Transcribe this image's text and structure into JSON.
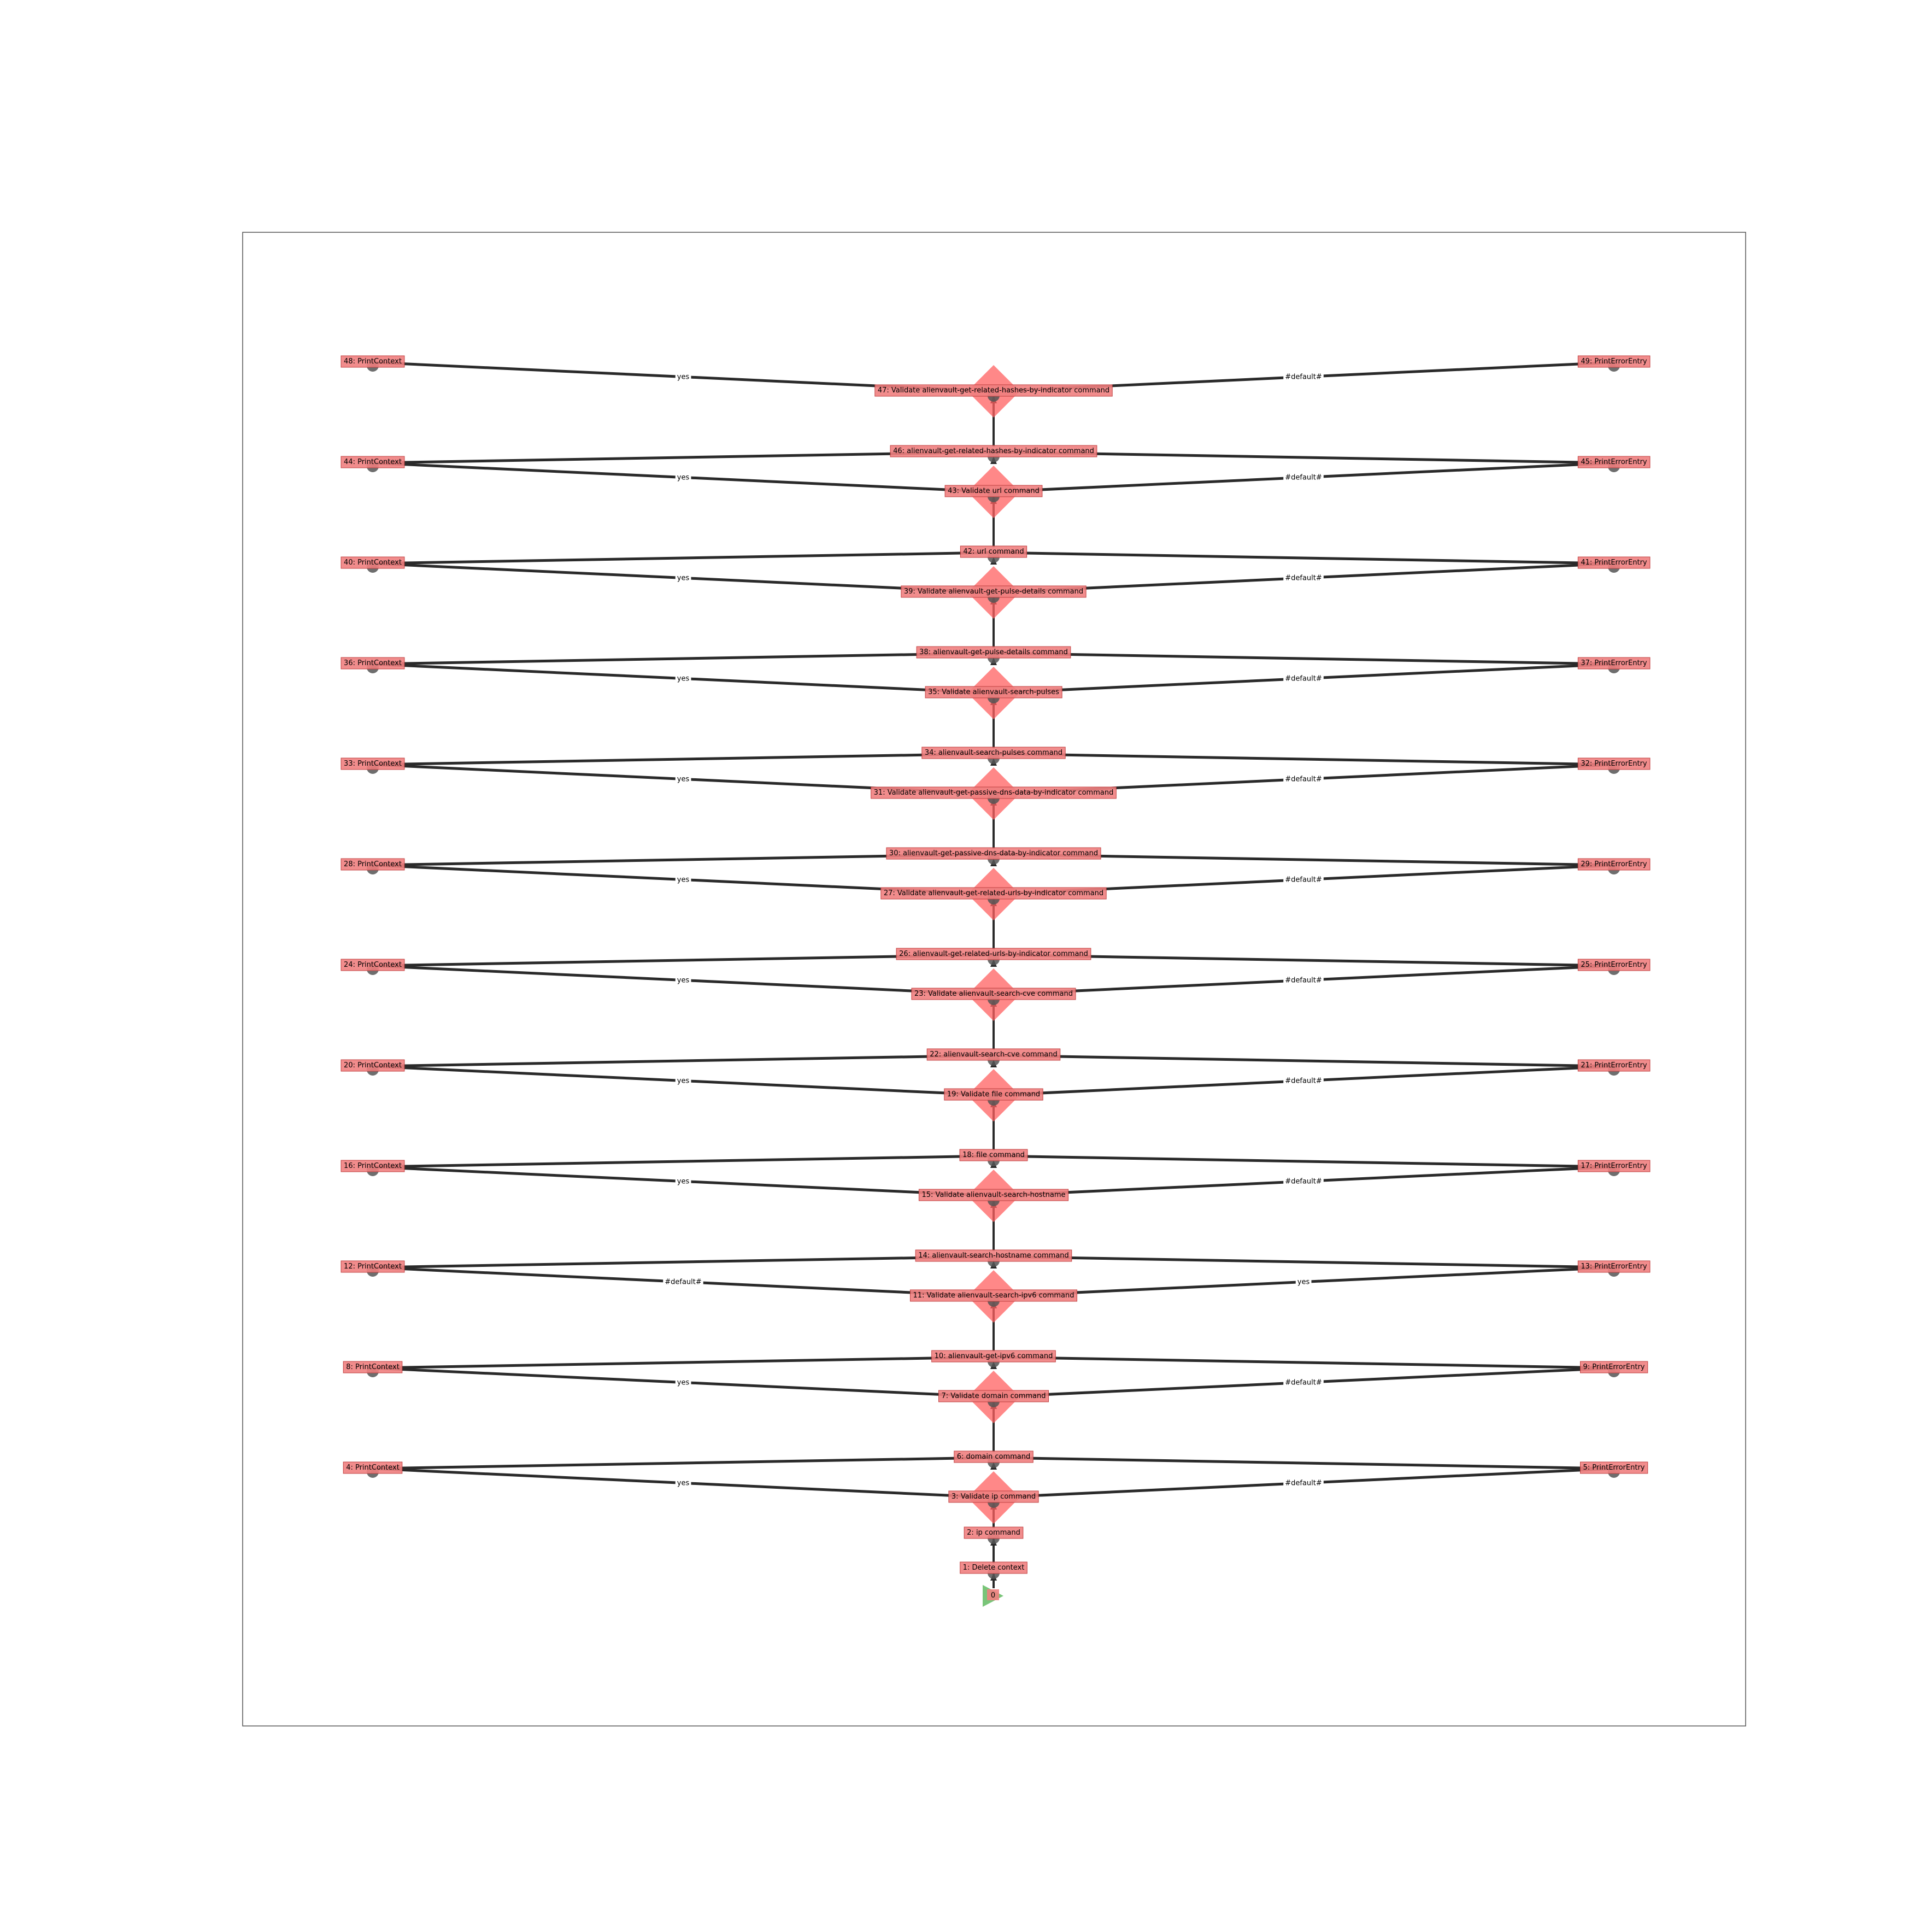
{
  "diagram": {
    "start_label": "0",
    "colors": {
      "task_fill": "#f08080",
      "task_stroke": "#c04040",
      "condition_fill": "#ff6060",
      "start_fill": "#6abf6a",
      "edge": "#2a2a2a",
      "node_dot": "#555555",
      "frame": "#555555"
    },
    "spine": [
      {
        "label": "1: Delete context",
        "type": "task"
      },
      {
        "label": "2: ip command",
        "type": "task"
      },
      {
        "label": "3: Validate ip command",
        "type": "condition"
      },
      {
        "label": "6: domain command",
        "type": "task"
      },
      {
        "label": "7: Validate domain command",
        "type": "condition"
      },
      {
        "label": "10: alienvault-get-ipv6 command",
        "type": "task"
      },
      {
        "label": "11: Validate alienvault-search-ipv6 command",
        "type": "condition"
      },
      {
        "label": "14: alienvault-search-hostname command",
        "type": "task"
      },
      {
        "label": "15: Validate alienvault-search-hostname",
        "type": "condition"
      },
      {
        "label": "18: file command",
        "type": "task"
      },
      {
        "label": "19: Validate file command",
        "type": "condition"
      },
      {
        "label": "22: alienvault-search-cve command",
        "type": "task"
      },
      {
        "label": "23: Validate alienvault-search-cve command",
        "type": "condition"
      },
      {
        "label": "26: alienvault-get-related-urls-by-indicator command",
        "type": "task"
      },
      {
        "label": "27: Validate alienvault-get-related-urls-by-indicator command",
        "type": "condition"
      },
      {
        "label": "30: alienvault-get-passive-dns-data-by-indicator command",
        "type": "task"
      },
      {
        "label": "31: Validate alienvault-get-passive-dns-data-by-indicator command",
        "type": "condition"
      },
      {
        "label": "34: alienvault-search-pulses command",
        "type": "task"
      },
      {
        "label": "35: Validate alienvault-search-pulses",
        "type": "condition"
      },
      {
        "label": "38: alienvault-get-pulse-details command",
        "type": "task"
      },
      {
        "label": "39: Validate alienvault-get-pulse-details command",
        "type": "condition"
      },
      {
        "label": "42: url command",
        "type": "task"
      },
      {
        "label": "43: Validate url command",
        "type": "condition"
      },
      {
        "label": "46: alienvault-get-related-hashes-by-indicator command",
        "type": "task"
      },
      {
        "label": "47: Validate alienvault-get-related-hashes-by-indicator command",
        "type": "condition"
      }
    ],
    "branches": [
      {
        "left": "4: PrintContext",
        "right": "5: PrintErrorEntry",
        "left_edge": "yes",
        "right_edge": "#default#"
      },
      {
        "left": "8: PrintContext",
        "right": "9: PrintErrorEntry",
        "left_edge": "yes",
        "right_edge": "#default#"
      },
      {
        "left": "12: PrintContext",
        "right": "13: PrintErrorEntry",
        "left_edge": "#default#",
        "right_edge": "yes"
      },
      {
        "left": "16: PrintContext",
        "right": "17: PrintErrorEntry",
        "left_edge": "yes",
        "right_edge": "#default#"
      },
      {
        "left": "20: PrintContext",
        "right": "21: PrintErrorEntry",
        "left_edge": "yes",
        "right_edge": "#default#"
      },
      {
        "left": "24: PrintContext",
        "right": "25: PrintErrorEntry",
        "left_edge": "yes",
        "right_edge": "#default#"
      },
      {
        "left": "28: PrintContext",
        "right": "29: PrintErrorEntry",
        "left_edge": "yes",
        "right_edge": "#default#"
      },
      {
        "left": "33: PrintContext",
        "right": "32: PrintErrorEntry",
        "left_edge": "yes",
        "right_edge": "#default#"
      },
      {
        "left": "36: PrintContext",
        "right": "37: PrintErrorEntry",
        "left_edge": "yes",
        "right_edge": "#default#"
      },
      {
        "left": "40: PrintContext",
        "right": "41: PrintErrorEntry",
        "left_edge": "yes",
        "right_edge": "#default#"
      },
      {
        "left": "44: PrintContext",
        "right": "45: PrintErrorEntry",
        "left_edge": "yes",
        "right_edge": "#default#"
      },
      {
        "left": "48: PrintContext",
        "right": "49: PrintErrorEntry",
        "left_edge": "yes",
        "right_edge": "#default#"
      }
    ]
  }
}
